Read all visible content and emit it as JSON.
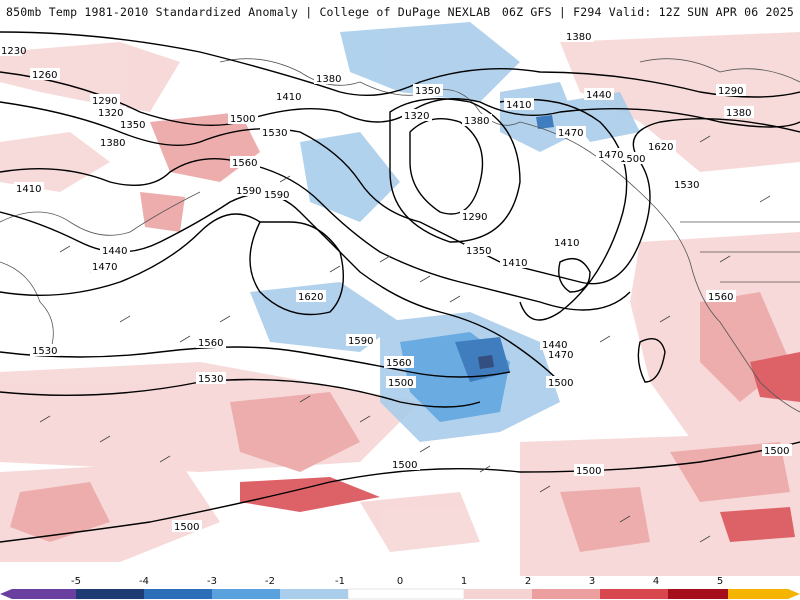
{
  "header": {
    "title_left": "850mb Temp 1981-2010 Standardized Anomaly | College of DuPage NEXLAB",
    "title_right": "06Z GFS | F294 Valid: 12Z SUN APR 06 2025"
  },
  "map": {
    "field": "850mb temperature standardized anomaly",
    "contour_labels": [
      "1230",
      "1260",
      "1290",
      "1320",
      "1350",
      "1380",
      "1410",
      "1440",
      "1470",
      "1500",
      "1530",
      "1560",
      "1590",
      "1620",
      "1380",
      "1350",
      "1320",
      "1290",
      "1380",
      "1410",
      "1440",
      "1470",
      "1500",
      "1530",
      "1560",
      "1590",
      "1530",
      "1500",
      "1500",
      "1500",
      "1500",
      "1380",
      "1410",
      "1440",
      "1470",
      "1500",
      "1530",
      "1560",
      "1350",
      "1410",
      "1410",
      "1290",
      "1380",
      "1470",
      "1500",
      "1530",
      "1560",
      "1620",
      "1590"
    ]
  },
  "colorbar": {
    "ticks": [
      "-5",
      "-4",
      "-3",
      "-2",
      "-1",
      "0",
      "1",
      "2",
      "3",
      "4",
      "5"
    ],
    "colors": [
      "#6a3fa0",
      "#1f3b73",
      "#2c6fb8",
      "#5aa2de",
      "#a9cdea",
      "#ffffff",
      "#f6d3d3",
      "#ec9f9f",
      "#d8474e",
      "#a50f1c",
      "#f5b400"
    ]
  }
}
